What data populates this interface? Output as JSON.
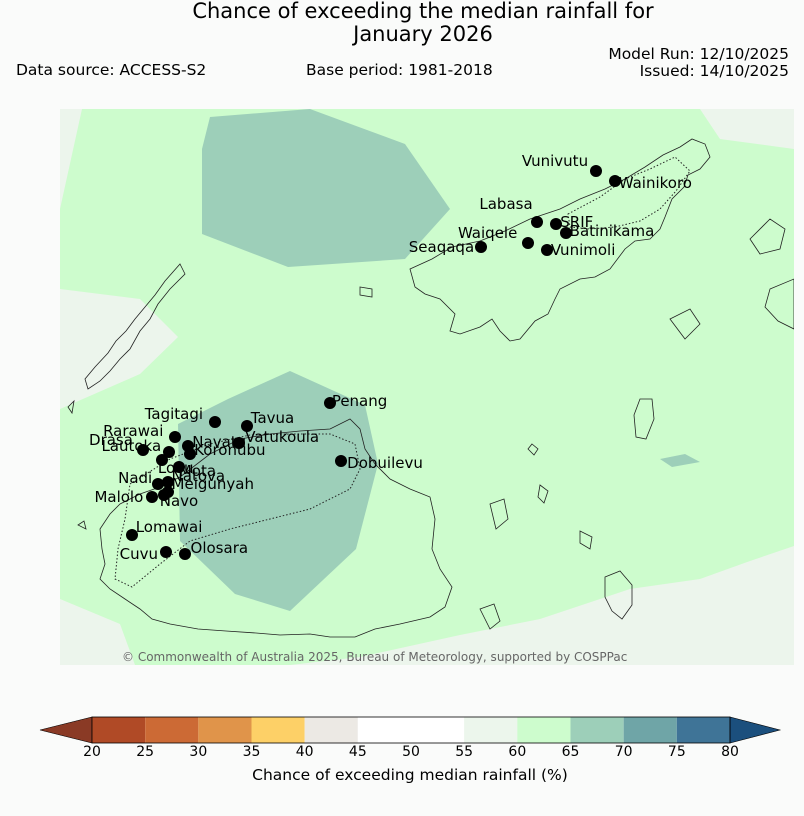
{
  "title_line1": "Chance of exceeding the median rainfall for",
  "title_line2": "January 2026",
  "data_source": "Data source: ACCESS-S2",
  "base_period": "Base period: 1981-2018",
  "model_run": "Model Run: 12/10/2025",
  "issued": "Issued: 14/10/2025",
  "copyright": "© Commonwealth of Australia 2025, Bureau of Meteorology, supported by COSPPac",
  "stations": [
    {
      "name": "Vunivutu",
      "lon": 179.73,
      "lat": -16.14
    },
    {
      "name": "Wainikoro",
      "lon": 179.83,
      "lat": -16.19
    },
    {
      "name": "Labasa",
      "lon": 179.42,
      "lat": -16.41
    },
    {
      "name": "SRIF",
      "lon": 179.52,
      "lat": -16.42
    },
    {
      "name": "Batinikama",
      "lon": 179.57,
      "lat": -16.47
    },
    {
      "name": "Waiqele",
      "lon": 179.37,
      "lat": -16.52
    },
    {
      "name": "Vunimoli",
      "lon": 179.47,
      "lat": -16.56
    },
    {
      "name": "Seaqaqa",
      "lon": 179.12,
      "lat": -16.54
    },
    {
      "name": "Penang",
      "lon": 178.32,
      "lat": -17.37
    },
    {
      "name": "Tagitagi",
      "lon": 177.71,
      "lat": -17.47
    },
    {
      "name": "Tavua",
      "lon": 177.88,
      "lat": -17.49
    },
    {
      "name": "Vatukoula",
      "lon": 177.84,
      "lat": -17.58
    },
    {
      "name": "Rarawai",
      "lon": 177.5,
      "lat": -17.55
    },
    {
      "name": "Navatu",
      "lon": 177.57,
      "lat": -17.6
    },
    {
      "name": "Drasa",
      "lon": 177.33,
      "lat": -17.62
    },
    {
      "name": "Koronubu",
      "lon": 177.58,
      "lat": -17.64
    },
    {
      "name": "Lautoka",
      "lon": 177.47,
      "lat": -17.63
    },
    {
      "name": "Lovu",
      "lon": 177.43,
      "lat": -17.67
    },
    {
      "name": "Mota",
      "lon": 177.52,
      "lat": -17.71
    },
    {
      "name": "Dobuilevu",
      "lon": 178.38,
      "lat": -17.68
    },
    {
      "name": "Natova",
      "lon": 177.46,
      "lat": -17.79
    },
    {
      "name": "Nadi",
      "lon": 177.41,
      "lat": -17.8
    },
    {
      "name": "Meigunyah",
      "lon": 177.46,
      "lat": -17.84
    },
    {
      "name": "Navo",
      "lon": 177.44,
      "lat": -17.86
    },
    {
      "name": "Malolo",
      "lon": 177.38,
      "lat": -17.87
    },
    {
      "name": "Lomawai",
      "lon": 177.27,
      "lat": -18.07
    },
    {
      "name": "Cuvu",
      "lon": 177.45,
      "lat": -18.16
    },
    {
      "name": "Olosara",
      "lon": 177.55,
      "lat": -18.17
    }
  ],
  "colorbar": {
    "label": "Chance of exceeding median rainfall (%)",
    "ticks": [
      "20",
      "25",
      "30",
      "35",
      "40",
      "45",
      "50",
      "55",
      "60",
      "65",
      "70",
      "75",
      "80"
    ],
    "colors": [
      "#b04a26",
      "#cc6a35",
      "#e0944a",
      "#fdd067",
      "#ece9e4",
      "#ffffff",
      "#ffffff",
      "#ecf6ec",
      "#cdfccd",
      "#9dcfb9",
      "#6fa5a7",
      "#3f7497"
    ],
    "under_color": "#8a3a25",
    "over_color": "#1b4f7d"
  },
  "map_colors": {
    "ocean_55_60": "#ecf5ec",
    "prob_60_65": "#cdfccd",
    "prob_65_70": "#9dcfb9"
  }
}
